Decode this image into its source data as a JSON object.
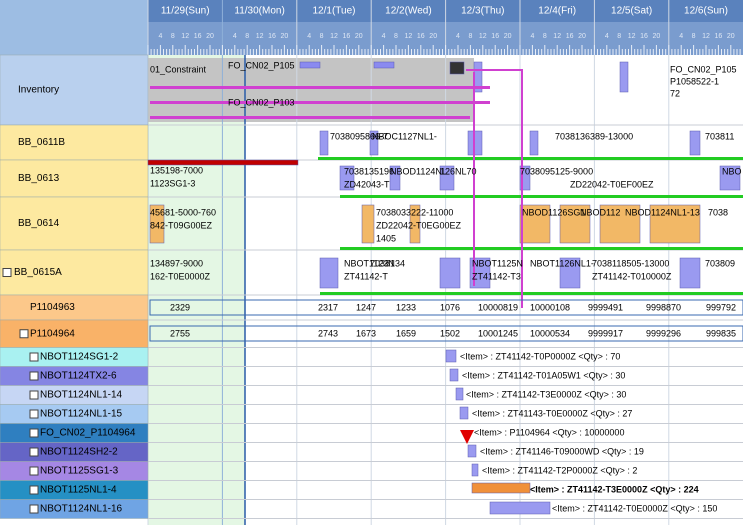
{
  "header": {
    "dates": [
      "11/29(Sun)",
      "11/30(Mon)",
      "12/1(Tue)",
      "12/2(Wed)",
      "12/3(Thu)",
      "12/4(Fri)",
      "12/5(Sat)",
      "12/6(Sun)"
    ],
    "hours": [
      "4",
      "8",
      "12",
      "16",
      "20"
    ]
  },
  "rows": [
    "Inventory",
    "BB_0611B",
    "BB_0613",
    "BB_0614",
    "BB_0615A",
    "P1104963",
    "P1104964",
    "NBOT1124SG1-2",
    "NBOT1124TX2-6",
    "NBOT1124NL1-14",
    "NBOT1124NL1-15",
    "FO_CN02_P1104964",
    "NBOT1124SH2-2",
    "NBOT1125SG1-3",
    "NBOT1125NL1-4",
    "NBOT1124NL1-16"
  ],
  "tasks": [
    "01_Constraint",
    "FO_CN02_P105",
    "FO_CN02_P103",
    "FO_CN02_P105",
    "P1058522-1",
    "72",
    "7038095866-7",
    "NBOC1127NL1-",
    "7038136389-13000",
    "703811",
    "135198-7000",
    "1123SG1-3",
    "7038135196",
    "NBOD1124NL",
    "126NL70",
    "7038095125-9000",
    "NBO",
    "ZD42043-T",
    "ZD22042-T0EF00EZ",
    "45681-5000-760",
    "842-T09G00EZ",
    "7038033222-11000",
    "ZD22042-T0EG00EZ",
    "1405",
    "NBOD1126SG1",
    "NBOD112",
    "NBOD1124NL1-13",
    "7038",
    "134897-9000",
    "162-T0E0000Z",
    "NBOT1123N",
    "7038134",
    "NBOT1125N",
    "NBOT1126NL1-",
    "7038118505-13000",
    "703809",
    "ZT41142-T",
    "ZT41142-T3",
    "ZT41142-T010000Z"
  ],
  "quantities": {
    "P1104963": [
      "2329",
      "2317",
      "1247",
      "1233",
      "1076",
      "10000819",
      "10000108",
      "9999491",
      "9998870",
      "999792"
    ],
    "P1104964": [
      "2755",
      "2743",
      "1673",
      "1659",
      "1502",
      "10001245",
      "10000534",
      "9999917",
      "9999296",
      "999835"
    ]
  },
  "items": [
    "<Item> : ZT41142-T0P0000Z   <Qty> : 70",
    "<Item> : ZT41142-T01A05W1   <Qty> : 30",
    "<Item> : ZT41142-T3E0000Z   <Qty> : 30",
    "<Item> : ZT41143-T0E0000Z   <Qty> : 27",
    "<Item> : P1104964   <Qty> : 10000000",
    "<Item> : ZT41146-T09000WD   <Qty> : 19",
    "<Item> : ZT41142-T2P0000Z   <Qty> : 2",
    "<Item> : ZT41142-T3E0000Z   <Qty> : 224",
    "<Item> : ZT41142-T0E0000Z   <Qty> : 150"
  ]
}
